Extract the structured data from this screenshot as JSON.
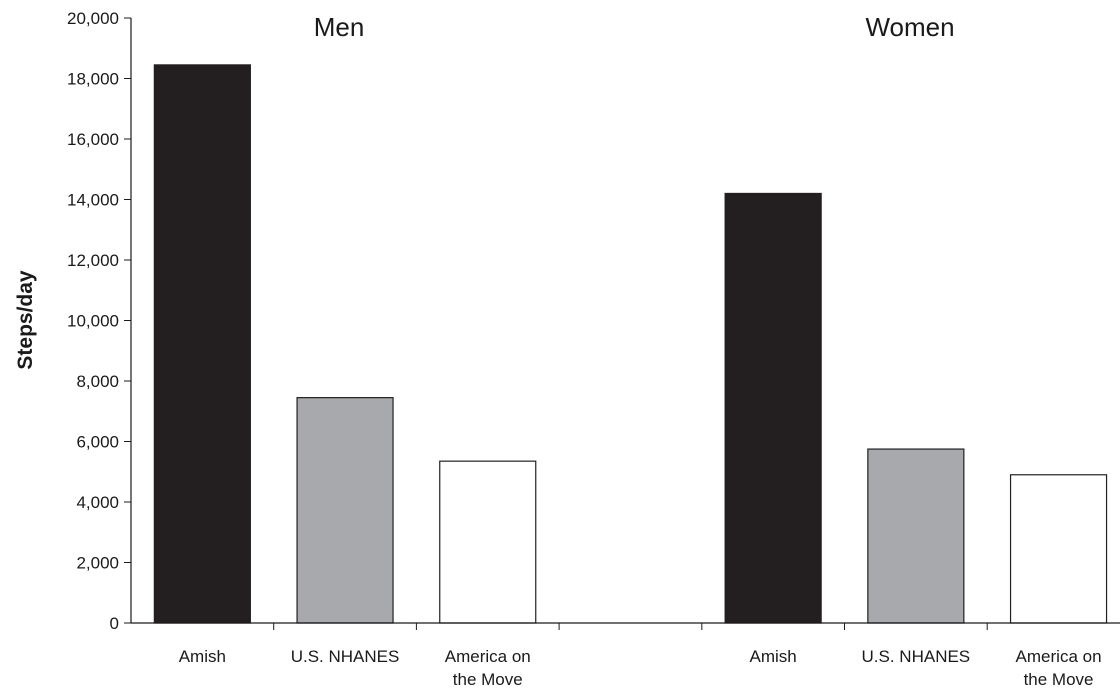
{
  "chart_data": {
    "type": "bar",
    "ylabel": "Steps/day",
    "ylim": [
      0,
      20000
    ],
    "yticks": [
      "0",
      "2,000",
      "4,000",
      "6,000",
      "8,000",
      "10,000",
      "12,000",
      "14,000",
      "16,000",
      "18,000",
      "20,000"
    ],
    "grid": false,
    "groups": [
      {
        "title": "Men",
        "bars": [
          {
            "label_lines": [
              "Amish"
            ],
            "value": 18450,
            "color": "#231f20"
          },
          {
            "label_lines": [
              "U.S. NHANES"
            ],
            "value": 7450,
            "color": "#a7a9ac"
          },
          {
            "label_lines": [
              "America on",
              "the Move"
            ],
            "value": 5350,
            "color": "#ffffff"
          }
        ]
      },
      {
        "title": "Women",
        "bars": [
          {
            "label_lines": [
              "Amish"
            ],
            "value": 14200,
            "color": "#231f20"
          },
          {
            "label_lines": [
              "U.S. NHANES"
            ],
            "value": 5750,
            "color": "#a7a9ac"
          },
          {
            "label_lines": [
              "America on",
              "the Move"
            ],
            "value": 4900,
            "color": "#ffffff"
          }
        ]
      }
    ]
  }
}
